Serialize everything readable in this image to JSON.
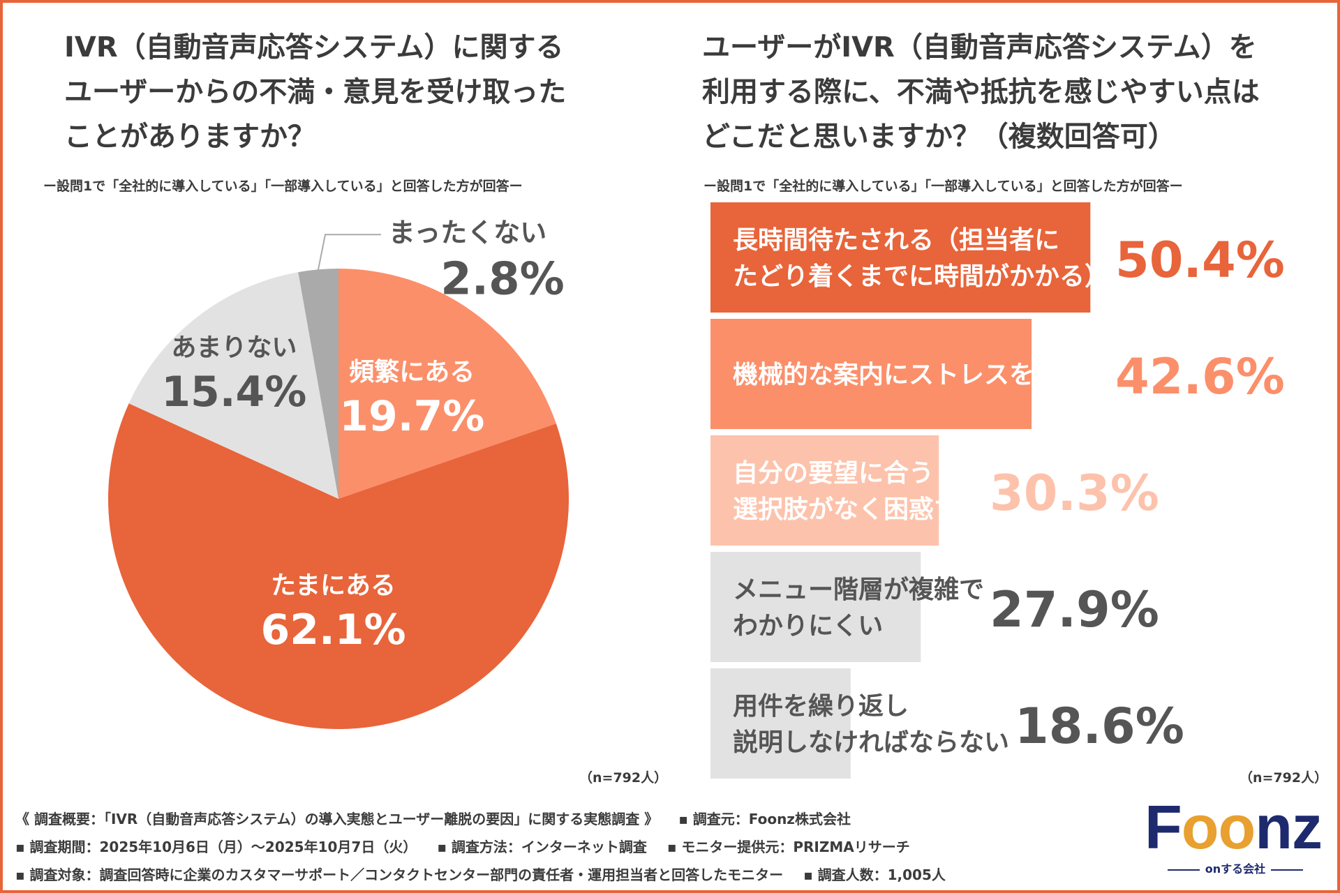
{
  "colors": {
    "accent_dark": "#e8643a",
    "accent_mid": "#fb8f6a",
    "accent_light": "#fdc2ab",
    "gray_light": "#e2e2e2",
    "gray_dark": "#aaaaaa",
    "text": "#3b3b3b"
  },
  "left": {
    "title_lines": [
      "IVR（自動音声応答システム）に関する",
      "ユーザーからの不満・意見を受け取った",
      "ことがありますか？"
    ],
    "subtitle": "ー設問1で「全社的に導入している」「一部導入している」と回答した方が回答ー",
    "n_label": "（n=792人）"
  },
  "right": {
    "title_lines": [
      "ユーザーがIVR（自動音声応答システム）を",
      "利用する際に、不満や抵抗を感じやすい点は",
      "どこだと思いますか？（複数回答可）"
    ],
    "subtitle": "ー設問1で「全社的に導入している」「一部導入している」と回答した方が回答ー",
    "n_label": "（n=792人）"
  },
  "chart_data": [
    {
      "type": "pie",
      "title": "IVR（自動音声応答システム）に関するユーザーからの不満・意見を受け取ったことがありますか？",
      "categories": [
        "頻繁にある",
        "たまにある",
        "あまりない",
        "まったくない"
      ],
      "values": [
        19.7,
        62.1,
        15.4,
        2.8
      ],
      "value_labels": [
        "19.7%",
        "62.1%",
        "15.4%",
        "2.8%"
      ],
      "unit": "%",
      "colors": [
        "#fb8f6a",
        "#e8643a",
        "#e2e2e2",
        "#aaaaaa"
      ],
      "label_colors": [
        "#ffffff",
        "#ffffff",
        "#555555",
        "#555555"
      ]
    },
    {
      "type": "bar",
      "orientation": "horizontal",
      "title": "ユーザーがIVR（自動音声応答システム）を利用する際に、不満や抵抗を感じやすい点はどこだと思いますか？（複数回答可）",
      "categories": [
        [
          "長時間待たされる（担当者に",
          "たどり着くまでに時間がかかる）"
        ],
        [
          "機械的な案内にストレスを感じる"
        ],
        [
          "自分の要望に合う",
          "選択肢がなく困惑する"
        ],
        [
          "メニュー階層が複雑で",
          "わかりにくい"
        ],
        [
          "用件を繰り返し",
          "説明しなければならない"
        ]
      ],
      "values": [
        50.4,
        42.6,
        30.3,
        27.9,
        18.6
      ],
      "value_labels": [
        "50.4%",
        "42.6%",
        "30.3%",
        "27.9%",
        "18.6%"
      ],
      "unit": "%",
      "colors": [
        "#e8643a",
        "#fb8f6a",
        "#fdc2ab",
        "#e2e2e2",
        "#e2e2e2"
      ],
      "label_colors": [
        "#ffffff",
        "#ffffff",
        "#ffffff",
        "#555555",
        "#555555"
      ],
      "value_colors": [
        "#e8643a",
        "#fb8f6a",
        "#fdc2ab",
        "#555555",
        "#555555"
      ]
    }
  ],
  "footer": {
    "line1": [
      "《 調査概要：「IVR（自動音声応答システム）の導入実態とユーザー離脱の要因」に関する実態調査 》",
      "▪ 調査元：Foonz株式会社"
    ],
    "line2": [
      "▪ 調査期間：2025年10月6日（月）～2025年10月7日（火）",
      "▪ 調査方法：インターネット調査",
      "▪ モニター提供元：PRIZMAリサーチ"
    ],
    "line3": [
      "▪ 調査対象：調査回答時に企業のカスタマーサポート／コンタクトセンター部門の責任者・運用担当者と回答したモニター",
      "▪ 調査人数：1,005人"
    ]
  },
  "logo": {
    "text_pre": "F",
    "text_oo": "oo",
    "text_post": "nz",
    "tagline": "onする会社"
  }
}
